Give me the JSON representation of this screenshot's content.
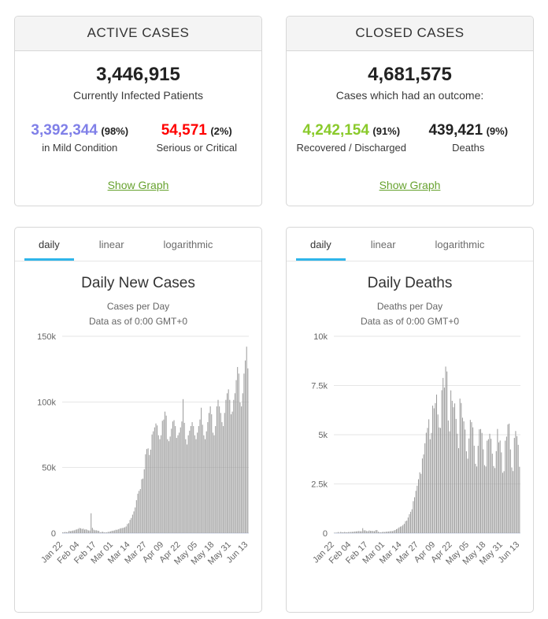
{
  "colors": {
    "tab_accent": "#2fb5ea",
    "bar": "#999999",
    "grid": "#e6e6e6",
    "axis_line": "#ccd6eb",
    "axis_label": "#666666",
    "mild": "#8080e8",
    "serious": "#ff0000",
    "recovered": "#8aca2b",
    "deaths": "#222222",
    "link_green": "#67a22f"
  },
  "stat_panels": {
    "active": {
      "title": "ACTIVE CASES",
      "total": "3,446,915",
      "total_label": "Currently Infected Patients",
      "left": {
        "value": "3,392,344",
        "pct": "(98%)",
        "label": "in Mild Condition",
        "color": "#8080e8"
      },
      "right": {
        "value": "54,571",
        "pct": "(2%)",
        "label": "Serious or Critical",
        "color": "#ff0000"
      },
      "link": "Show Graph"
    },
    "closed": {
      "title": "CLOSED CASES",
      "total": "4,681,575",
      "total_label": "Cases which had an outcome:",
      "left": {
        "value": "4,242,154",
        "pct": "(91%)",
        "label": "Recovered / Discharged",
        "color": "#8aca2b"
      },
      "right": {
        "value": "439,421",
        "pct": "(9%)",
        "label": "Deaths",
        "color": "#222222"
      },
      "link": "Show Graph"
    }
  },
  "chart_data": [
    {
      "type": "bar",
      "title": "Daily New Cases",
      "subtitle_lines": [
        "Cases per Day",
        "Data as of 0:00 GMT+0"
      ],
      "tabs": [
        "daily",
        "linear",
        "logarithmic"
      ],
      "active_tab": "daily",
      "xlabel": "",
      "ylabel": "",
      "ylim": [
        0,
        150000
      ],
      "grid": true,
      "legend": "none",
      "y_ticks": [
        {
          "v": 0,
          "label": "0"
        },
        {
          "v": 50000,
          "label": "50k"
        },
        {
          "v": 100000,
          "label": "100k"
        },
        {
          "v": 150000,
          "label": "150k"
        }
      ],
      "x_tick_labels": [
        "Jan 22",
        "Feb 04",
        "Feb 17",
        "Mar 01",
        "Mar 14",
        "Mar 27",
        "Apr 09",
        "Apr 22",
        "May 05",
        "May 18",
        "May 31",
        "Jun 13"
      ],
      "x_tick_every": 13,
      "values": [
        555,
        654,
        903,
        757,
        696,
        1781,
        1477,
        1755,
        2006,
        2127,
        2603,
        2836,
        3239,
        3927,
        3721,
        3176,
        3438,
        2676,
        3002,
        2545,
        2070,
        2022,
        15136,
        4051,
        2644,
        2162,
        2222,
        1908,
        1751,
        648,
        891,
        1052,
        648,
        561,
        555,
        951,
        1106,
        1352,
        1753,
        1886,
        2108,
        2576,
        2541,
        2947,
        3346,
        3752,
        3903,
        4149,
        4498,
        5120,
        6988,
        7582,
        10106,
        11586,
        14089,
        16576,
        19572,
        25110,
        30082,
        32214,
        33590,
        41083,
        41571,
        48621,
        60142,
        64095,
        64609,
        59574,
        63617,
        75188,
        77597,
        80591,
        83574,
        82068,
        74575,
        71583,
        74593,
        85611,
        86574,
        92598,
        89582,
        71561,
        70072,
        73602,
        79585,
        85075,
        86082,
        81577,
        72566,
        74584,
        76580,
        80578,
        85102,
        102106,
        84072,
        71577,
        67561,
        74571,
        78094,
        81594,
        84574,
        81561,
        74566,
        71586,
        76589,
        81573,
        86604,
        95581,
        82593,
        74570,
        71589,
        77580,
        84584,
        91580,
        96592,
        90566,
        76563,
        74578,
        81574,
        96582,
        101574,
        96559,
        91581,
        84563,
        81577,
        91599,
        101592,
        106572,
        109586,
        101578,
        90569,
        92594,
        101569,
        106589,
        116582,
        126571,
        121582,
        99576,
        96567,
        106578,
        121583,
        131576,
        142069,
        125566
      ]
    },
    {
      "type": "bar",
      "title": "Daily Deaths",
      "subtitle_lines": [
        "Deaths per Day",
        "Data as of 0:00 GMT+0"
      ],
      "tabs": [
        "daily",
        "linear",
        "logarithmic"
      ],
      "active_tab": "daily",
      "xlabel": "",
      "ylabel": "",
      "ylim": [
        0,
        10000
      ],
      "grid": true,
      "legend": "none",
      "y_ticks": [
        {
          "v": 0,
          "label": "0"
        },
        {
          "v": 2500,
          "label": "2.5k"
        },
        {
          "v": 5000,
          "label": "5k"
        },
        {
          "v": 7500,
          "label": "7.5k"
        },
        {
          "v": 10000,
          "label": "10k"
        }
      ],
      "x_tick_labels": [
        "Jan 22",
        "Feb 04",
        "Feb 17",
        "Mar 01",
        "Mar 14",
        "Mar 27",
        "Apr 09",
        "Apr 22",
        "May 05",
        "May 18",
        "May 31",
        "Jun 13"
      ],
      "x_tick_every": 13,
      "values": [
        17,
        25,
        26,
        56,
        26,
        65,
        46,
        43,
        60,
        46,
        46,
        58,
        57,
        65,
        66,
        73,
        86,
        89,
        97,
        108,
        97,
        97,
        254,
        143,
        142,
        106,
        98,
        136,
        116,
        118,
        109,
        97,
        150,
        158,
        71,
        52,
        44,
        58,
        67,
        58,
        76,
        81,
        86,
        97,
        106,
        102,
        133,
        159,
        204,
        232,
        289,
        332,
        352,
        413,
        476,
        607,
        639,
        795,
        964,
        1084,
        1216,
        1624,
        1823,
        2151,
        2409,
        2739,
        3092,
        3013,
        3793,
        4000,
        4566,
        5099,
        5346,
        5784,
        4768,
        5091,
        6479,
        6342,
        6607,
        7038,
        6028,
        5372,
        5343,
        7261,
        7886,
        7394,
        8461,
        8213,
        5724,
        5174,
        7253,
        6723,
        6396,
        6589,
        5804,
        5052,
        4316,
        6833,
        6612,
        5864,
        5678,
        5262,
        4158,
        3785,
        4808,
        5754,
        5638,
        5373,
        4443,
        3524,
        3388,
        4437,
        5273,
        5288,
        5092,
        4258,
        3453,
        3388,
        4698,
        4773,
        5048,
        4793,
        4038,
        3408,
        3308,
        4164,
        5293,
        4612,
        4704,
        4103,
        3068,
        3148,
        4698,
        4902,
        5523,
        5564,
        4252,
        3338,
        3153,
        4838,
        5188,
        4928,
        4488,
        3372
      ]
    }
  ]
}
